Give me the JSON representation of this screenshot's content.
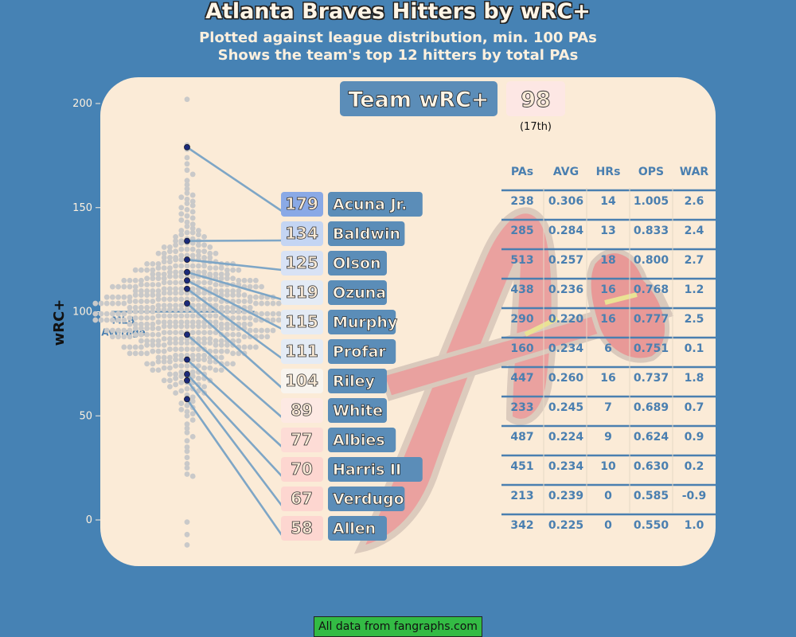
{
  "chart_data": {
    "type": "scatter",
    "title": "Atlanta Braves Hitters by wRC+",
    "subtitle_lines": [
      "Plotted against league distribution, min. 100 PAs",
      "Shows the team's top 12 hitters by total PAs"
    ],
    "ylabel": "wRC+",
    "ylim": [
      -15,
      205
    ],
    "yticks": [
      0,
      50,
      100,
      150,
      200
    ],
    "mlb_average": {
      "value": 100,
      "label_lines": [
        "MLB",
        "Average"
      ]
    },
    "team": {
      "label": "Team wRC+",
      "value": "98",
      "rank": "(17th)"
    },
    "league_distribution": [
      202,
      180,
      178,
      174,
      171,
      168,
      166,
      163,
      161,
      159,
      157,
      156,
      155,
      154,
      153,
      152,
      151,
      150,
      149,
      148,
      147,
      146,
      145,
      144,
      143,
      142,
      141,
      140,
      139,
      138,
      137,
      136,
      135,
      134,
      133,
      132,
      131,
      130,
      129,
      128,
      127,
      126,
      125,
      124,
      123,
      122,
      121,
      120,
      119,
      118,
      117,
      116,
      115,
      114,
      113,
      112,
      111,
      110,
      109,
      108,
      107,
      106,
      105,
      104,
      103,
      102,
      101,
      100,
      99,
      98,
      97,
      96,
      95,
      94,
      93,
      92,
      91,
      90,
      89,
      88,
      87,
      86,
      85,
      84,
      83,
      82,
      81,
      80,
      79,
      78,
      77,
      76,
      75,
      74,
      73,
      72,
      71,
      70,
      69,
      68,
      67,
      66,
      65,
      64,
      63,
      62,
      61,
      60,
      59,
      58,
      57,
      56,
      55,
      54,
      53,
      52,
      51,
      50,
      48,
      46,
      44,
      42,
      40,
      38,
      35,
      33,
      30,
      27,
      25,
      22,
      21,
      -1,
      -7,
      -12
    ],
    "players": [
      {
        "name": "Acuna Jr.",
        "wrc": 179,
        "pa": "238",
        "avg": "0.306",
        "hr": "14",
        "ops": "1.005",
        "war": "2.6"
      },
      {
        "name": "Baldwin",
        "wrc": 134,
        "pa": "285",
        "avg": "0.284",
        "hr": "13",
        "ops": "0.833",
        "war": "2.4"
      },
      {
        "name": "Olson",
        "wrc": 125,
        "pa": "513",
        "avg": "0.257",
        "hr": "18",
        "ops": "0.800",
        "war": "2.7"
      },
      {
        "name": "Ozuna",
        "wrc": 119,
        "pa": "438",
        "avg": "0.236",
        "hr": "16",
        "ops": "0.768",
        "war": "1.2"
      },
      {
        "name": "Murphy",
        "wrc": 115,
        "pa": "290",
        "avg": "0.220",
        "hr": "16",
        "ops": "0.777",
        "war": "2.5"
      },
      {
        "name": "Profar",
        "wrc": 111,
        "pa": "160",
        "avg": "0.234",
        "hr": "6",
        "ops": "0.751",
        "war": "0.1"
      },
      {
        "name": "Riley",
        "wrc": 104,
        "pa": "447",
        "avg": "0.260",
        "hr": "16",
        "ops": "0.737",
        "war": "1.8"
      },
      {
        "name": "White",
        "wrc": 89,
        "pa": "233",
        "avg": "0.245",
        "hr": "7",
        "ops": "0.689",
        "war": "0.7"
      },
      {
        "name": "Albies",
        "wrc": 77,
        "pa": "487",
        "avg": "0.224",
        "hr": "9",
        "ops": "0.624",
        "war": "0.9"
      },
      {
        "name": "Harris II",
        "wrc": 70,
        "pa": "451",
        "avg": "0.234",
        "hr": "10",
        "ops": "0.630",
        "war": "0.2"
      },
      {
        "name": "Verdugo",
        "wrc": 67,
        "pa": "213",
        "avg": "0.239",
        "hr": "0",
        "ops": "0.585",
        "war": "-0.9"
      },
      {
        "name": "Allen",
        "wrc": 58,
        "pa": "342",
        "avg": "0.225",
        "hr": "0",
        "ops": "0.550",
        "war": "1.0"
      }
    ],
    "table_headers": [
      "PAs",
      "AVG",
      "HRs",
      "OPS",
      "WAR"
    ],
    "colors": {
      "background": "#4682b4",
      "panel": "#fbebd7",
      "name_box": "#5b8db8",
      "line": "#7ea6c6",
      "league_dot": "#c9c9c9",
      "team_dot": "#1b2a7a",
      "table_text": "#4a7fb0"
    }
  },
  "footer": "All data from fangraphs.com"
}
